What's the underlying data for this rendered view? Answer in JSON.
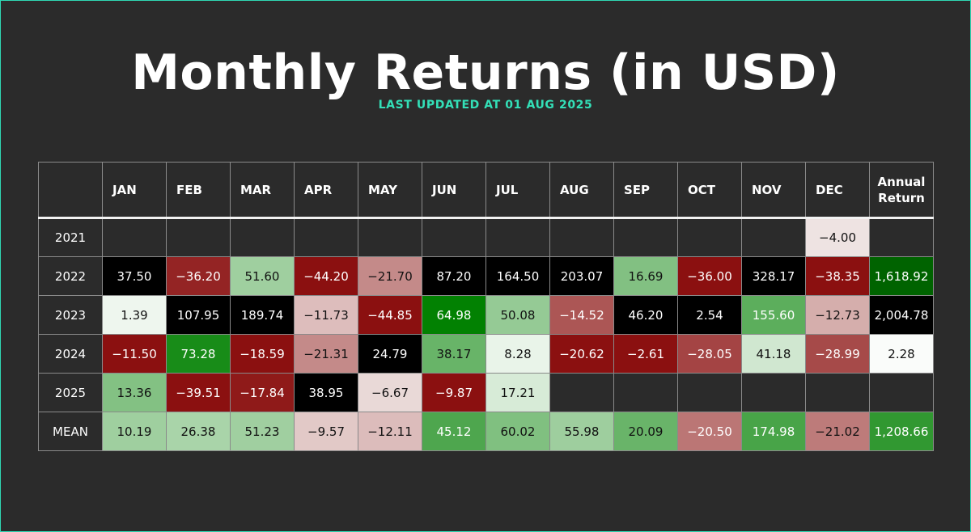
{
  "title": "Monthly Returns (in USD)",
  "subtitle": "LAST UPDATED AT 01 AUG 2025",
  "colors": {
    "background": "#2b2b2b",
    "accent": "#33e0b8",
    "positive": "#008000",
    "negative": "#8b1010"
  },
  "chart_data": {
    "type": "heatmap",
    "title": "Monthly Returns (in USD)",
    "subtitle": "LAST UPDATED AT 01 AUG 2025",
    "corner": "",
    "columns": [
      "JAN",
      "FEB",
      "MAR",
      "APR",
      "MAY",
      "JUN",
      "JUL",
      "AUG",
      "SEP",
      "OCT",
      "NOV",
      "DEC",
      "Annual Return"
    ],
    "rows": [
      {
        "label": "2021",
        "values": [
          null,
          null,
          null,
          null,
          null,
          null,
          null,
          null,
          null,
          null,
          null,
          -4.0,
          null
        ]
      },
      {
        "label": "2022",
        "values": [
          37.5,
          -36.2,
          51.6,
          -44.2,
          -21.7,
          87.2,
          164.5,
          203.07,
          16.69,
          -36.0,
          328.17,
          -38.35,
          1618.92
        ]
      },
      {
        "label": "2023",
        "values": [
          1.39,
          107.95,
          189.74,
          -11.73,
          -44.85,
          64.98,
          50.08,
          -14.52,
          46.2,
          2.54,
          155.6,
          -12.73,
          2004.78
        ]
      },
      {
        "label": "2024",
        "values": [
          -11.5,
          73.28,
          -18.59,
          -21.31,
          24.79,
          38.17,
          8.28,
          -20.62,
          -2.61,
          -28.05,
          41.18,
          -28.99,
          2.28
        ]
      },
      {
        "label": "2025",
        "values": [
          13.36,
          -39.51,
          -17.84,
          38.95,
          -6.67,
          -9.87,
          17.21,
          null,
          null,
          null,
          null,
          null,
          null
        ]
      },
      {
        "label": "MEAN",
        "values": [
          10.19,
          26.38,
          51.23,
          -9.57,
          -12.11,
          45.12,
          60.02,
          55.98,
          20.09,
          -20.5,
          174.98,
          -21.02,
          1208.66
        ]
      }
    ]
  }
}
